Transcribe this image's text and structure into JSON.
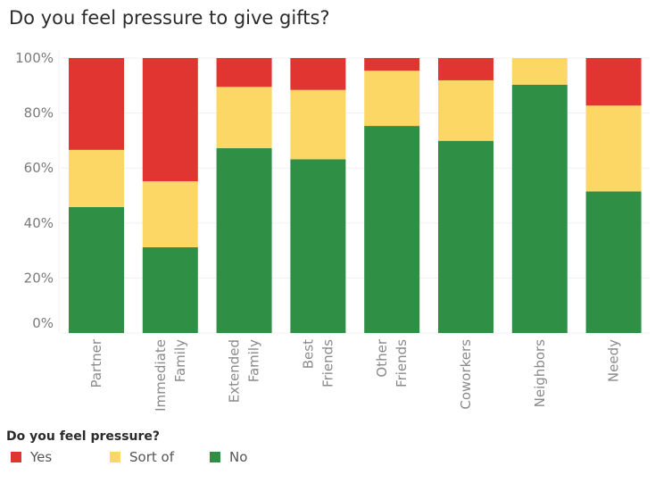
{
  "chart_data": {
    "type": "bar",
    "stacked": true,
    "normalized": true,
    "title": "Do you feel pressure to give gifts?",
    "xlabel": "",
    "ylabel": "",
    "ylim": [
      0,
      100
    ],
    "yticks": [
      "0%",
      "20%",
      "40%",
      "60%",
      "80%",
      "100%"
    ],
    "ytick_values": [
      0,
      20,
      40,
      60,
      80,
      100
    ],
    "grid": true,
    "categories": [
      [
        "Partner"
      ],
      [
        "Immediate",
        "Family"
      ],
      [
        "Extended",
        "Family"
      ],
      [
        "Best",
        "Friends"
      ],
      [
        "Other",
        "Friends"
      ],
      [
        "Coworkers"
      ],
      [
        "Neighbors"
      ],
      [
        "Needy"
      ]
    ],
    "series": [
      {
        "name": "No",
        "color": "#2F8F45",
        "values": [
          45.8,
          31.2,
          67.2,
          63.2,
          75.3,
          69.9,
          90.3,
          51.5
        ]
      },
      {
        "name": "Sort of",
        "color": "#FDD766",
        "values": [
          20.8,
          24.0,
          22.3,
          25.2,
          20.1,
          22.0,
          9.7,
          31.2
        ]
      },
      {
        "name": "Yes",
        "color": "#E03531",
        "values": [
          33.4,
          44.8,
          10.5,
          11.6,
          4.6,
          8.1,
          0.0,
          17.3
        ]
      }
    ],
    "legend": {
      "title": "Do you feel pressure?",
      "position": "bottom-left",
      "items": [
        {
          "label": "Yes",
          "color": "#E03531"
        },
        {
          "label": "Sort of",
          "color": "#FDD766"
        },
        {
          "label": "No",
          "color": "#2F8F45"
        }
      ]
    }
  }
}
